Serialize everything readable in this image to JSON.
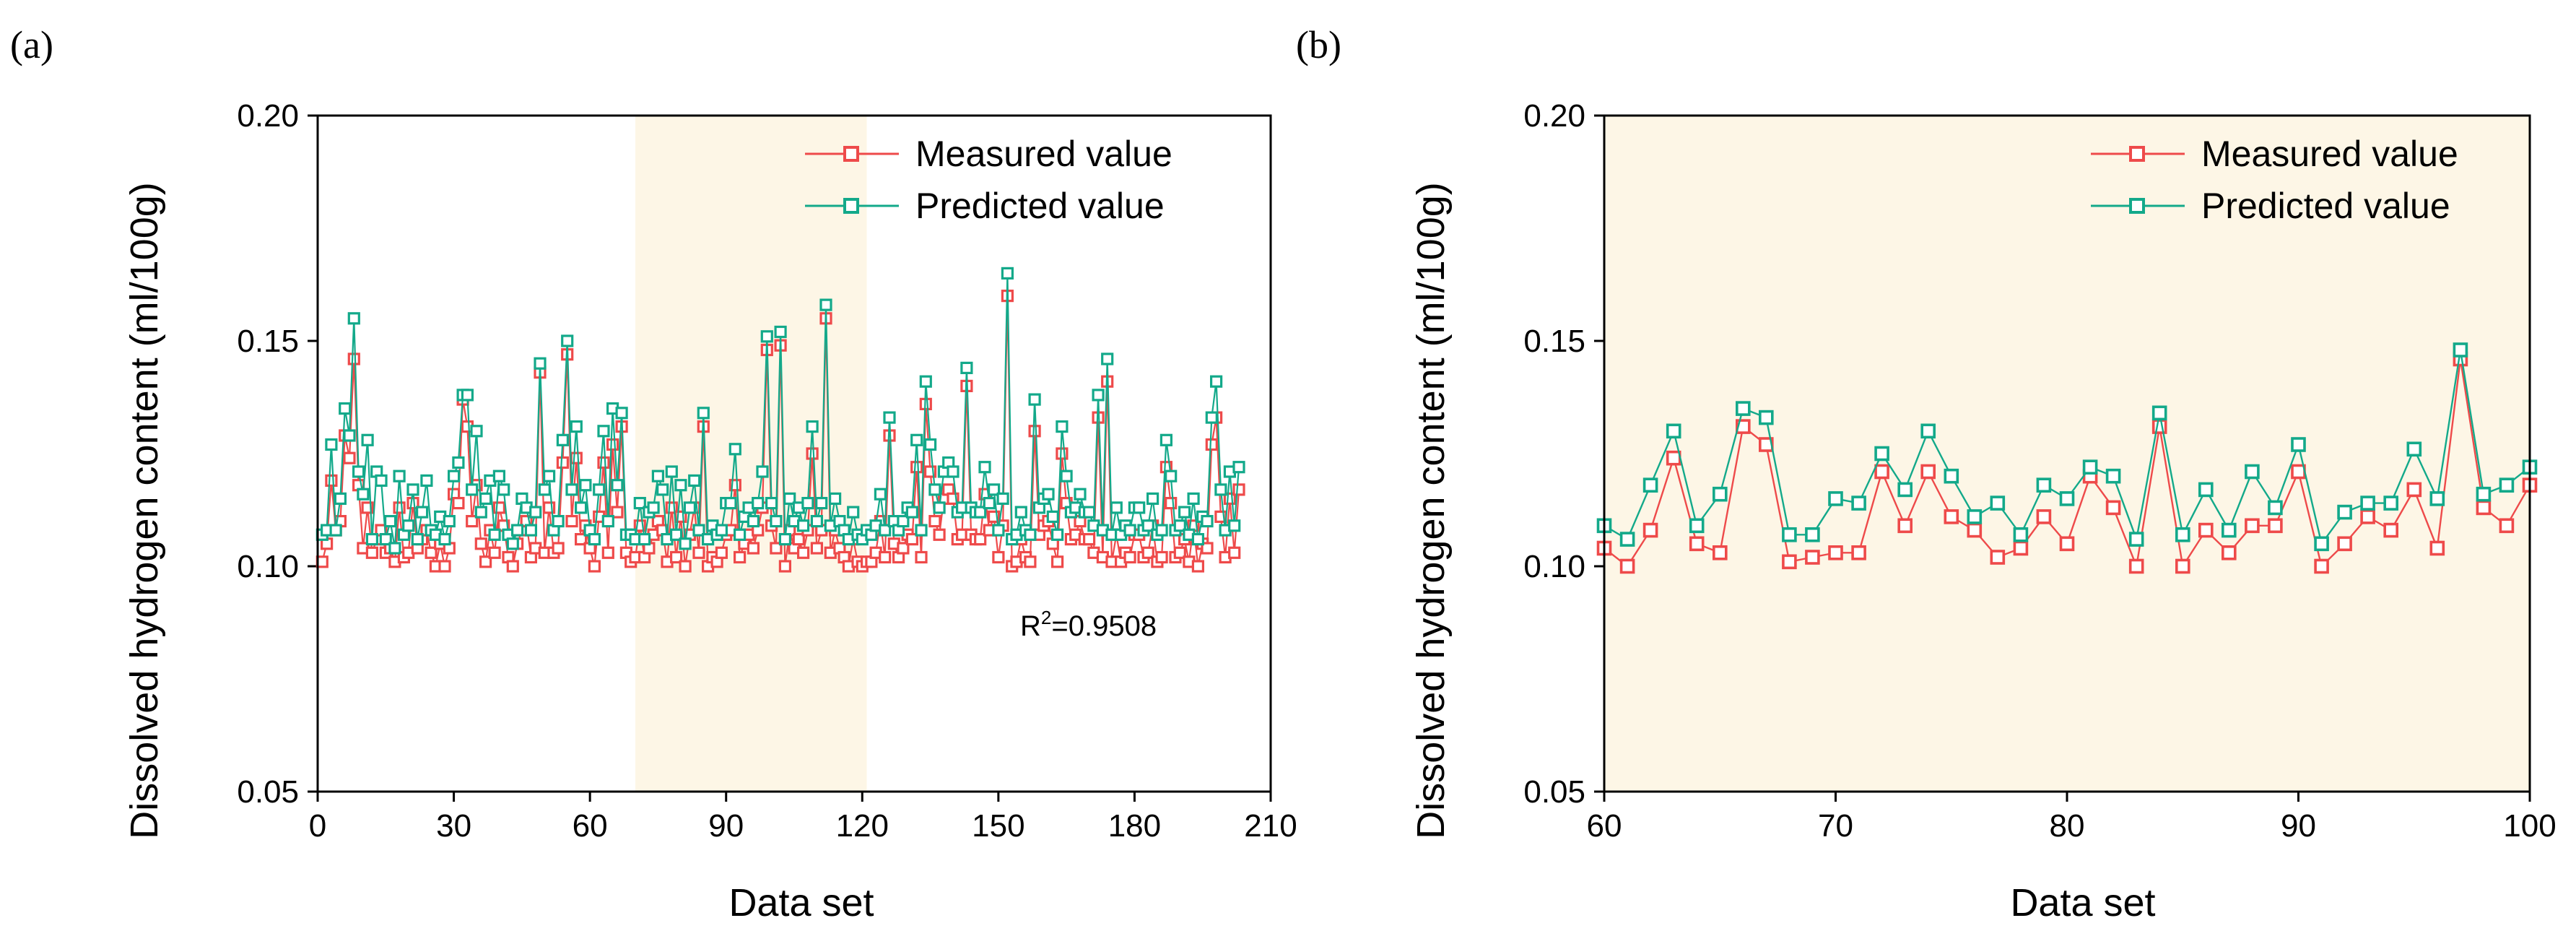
{
  "colors": {
    "measured": "#EE4A4A",
    "predicted": "#13A98A",
    "shade": "#FDF6E6"
  },
  "chart_data": [
    {
      "panel": "(a)",
      "type": "line",
      "xlabel": "Data set",
      "ylabel": "Dissolved hydrogen content (ml/100g)",
      "xlim": [
        0,
        210
      ],
      "ylim": [
        0.05,
        0.2
      ],
      "xticks": [
        0,
        30,
        60,
        90,
        120,
        150,
        180,
        210
      ],
      "yticks": [
        0.05,
        0.1,
        0.15,
        0.2
      ],
      "ytick_labels": [
        "0.05",
        "0.10",
        "0.15",
        "0.20"
      ],
      "shaded_x_range": [
        70,
        121
      ],
      "legend_position": "top-right",
      "annotation": {
        "text": "R",
        "sup": "2",
        "rest": "=0.9508"
      },
      "series": [
        {
          "name": "Measured value",
          "color_key": "measured",
          "x_start": 1,
          "values": [
            0.101,
            0.105,
            0.119,
            0.108,
            0.11,
            0.129,
            0.124,
            0.146,
            0.118,
            0.104,
            0.113,
            0.103,
            0.106,
            0.108,
            0.103,
            0.104,
            0.101,
            0.113,
            0.102,
            0.103,
            0.114,
            0.104,
            0.106,
            0.108,
            0.103,
            0.1,
            0.105,
            0.1,
            0.104,
            0.116,
            0.114,
            0.137,
            0.131,
            0.11,
            0.118,
            0.105,
            0.101,
            0.108,
            0.103,
            0.113,
            0.109,
            0.102,
            0.1,
            0.105,
            0.108,
            0.11,
            0.102,
            0.104,
            0.143,
            0.103,
            0.113,
            0.103,
            0.104,
            0.123,
            0.147,
            0.11,
            0.124,
            0.106,
            0.109,
            0.104,
            0.1,
            0.111,
            0.123,
            0.103,
            0.127,
            0.112,
            0.131,
            0.103,
            0.101,
            0.102,
            0.109,
            0.102,
            0.104,
            0.107,
            0.11,
            0.108,
            0.101,
            0.113,
            0.102,
            0.111,
            0.1,
            0.107,
            0.113,
            0.103,
            0.131,
            0.1,
            0.102,
            0.101,
            0.103,
            0.107,
            0.108,
            0.118,
            0.102,
            0.105,
            0.107,
            0.104,
            0.108,
            0.113,
            0.148,
            0.109,
            0.104,
            0.149,
            0.1,
            0.108,
            0.104,
            0.106,
            0.103,
            0.108,
            0.125,
            0.104,
            0.108,
            0.155,
            0.103,
            0.108,
            0.104,
            0.102,
            0.1,
            0.106,
            0.101,
            0.1,
            0.101,
            0.101,
            0.103,
            0.11,
            0.102,
            0.129,
            0.105,
            0.102,
            0.104,
            0.107,
            0.106,
            0.122,
            0.102,
            0.136,
            0.121,
            0.11,
            0.107,
            0.115,
            0.117,
            0.115,
            0.106,
            0.107,
            0.14,
            0.107,
            0.106,
            0.106,
            0.116,
            0.108,
            0.111,
            0.102,
            0.109,
            0.16,
            0.1,
            0.101,
            0.106,
            0.102,
            0.101,
            0.13,
            0.107,
            0.109,
            0.11,
            0.105,
            0.101,
            0.125,
            0.114,
            0.106,
            0.107,
            0.11,
            0.106,
            0.106,
            0.103,
            0.133,
            0.102,
            0.141,
            0.101,
            0.107,
            0.101,
            0.103,
            0.102,
            0.107,
            0.107,
            0.102,
            0.103,
            0.109,
            0.101,
            0.102,
            0.122,
            0.114,
            0.102,
            0.103,
            0.106,
            0.101,
            0.109,
            0.1,
            0.105,
            0.104,
            0.127,
            0.133,
            0.111,
            0.102,
            0.115,
            0.103,
            0.117
          ]
        },
        {
          "name": "Predicted value",
          "color_key": "predicted",
          "x_start": 1,
          "values": [
            0.107,
            0.108,
            0.127,
            0.108,
            0.115,
            0.135,
            0.129,
            0.155,
            0.121,
            0.116,
            0.128,
            0.106,
            0.121,
            0.119,
            0.106,
            0.11,
            0.104,
            0.12,
            0.107,
            0.109,
            0.117,
            0.106,
            0.112,
            0.119,
            0.108,
            0.107,
            0.111,
            0.106,
            0.11,
            0.12,
            0.123,
            0.138,
            0.138,
            0.117,
            0.13,
            0.112,
            0.115,
            0.119,
            0.107,
            0.12,
            0.117,
            0.107,
            0.105,
            0.108,
            0.115,
            0.113,
            0.108,
            0.112,
            0.145,
            0.117,
            0.12,
            0.108,
            0.11,
            0.128,
            0.15,
            0.117,
            0.131,
            0.113,
            0.118,
            0.108,
            0.106,
            0.117,
            0.13,
            0.11,
            0.135,
            0.118,
            0.134,
            0.107,
            0.107,
            0.106,
            0.114,
            0.106,
            0.112,
            0.113,
            0.12,
            0.117,
            0.106,
            0.121,
            0.107,
            0.118,
            0.105,
            0.113,
            0.119,
            0.108,
            0.134,
            0.106,
            0.109,
            0.107,
            0.108,
            0.114,
            0.114,
            0.126,
            0.107,
            0.111,
            0.113,
            0.11,
            0.114,
            0.121,
            0.151,
            0.114,
            0.11,
            0.152,
            0.106,
            0.115,
            0.11,
            0.113,
            0.109,
            0.114,
            0.131,
            0.11,
            0.114,
            0.158,
            0.109,
            0.115,
            0.11,
            0.108,
            0.106,
            0.112,
            0.107,
            0.106,
            0.108,
            0.107,
            0.109,
            0.116,
            0.108,
            0.133,
            0.11,
            0.108,
            0.11,
            0.113,
            0.112,
            0.128,
            0.108,
            0.141,
            0.127,
            0.117,
            0.113,
            0.121,
            0.123,
            0.121,
            0.112,
            0.113,
            0.144,
            0.113,
            0.112,
            0.112,
            0.122,
            0.114,
            0.117,
            0.108,
            0.115,
            0.165,
            0.106,
            0.107,
            0.112,
            0.108,
            0.107,
            0.137,
            0.113,
            0.115,
            0.116,
            0.111,
            0.107,
            0.131,
            0.12,
            0.112,
            0.113,
            0.116,
            0.112,
            0.112,
            0.109,
            0.138,
            0.108,
            0.146,
            0.107,
            0.113,
            0.107,
            0.109,
            0.108,
            0.113,
            0.113,
            0.108,
            0.109,
            0.115,
            0.107,
            0.108,
            0.128,
            0.12,
            0.108,
            0.109,
            0.112,
            0.107,
            0.115,
            0.106,
            0.111,
            0.11,
            0.133,
            0.141,
            0.117,
            0.108,
            0.121,
            0.109,
            0.122
          ]
        }
      ]
    },
    {
      "panel": "(b)",
      "type": "line",
      "xlabel": "Data set",
      "ylabel": "Dissolved hydrogen content (ml/100g)",
      "xlim": [
        60,
        100
      ],
      "ylim": [
        0.05,
        0.2
      ],
      "xticks": [
        60,
        70,
        80,
        90,
        100
      ],
      "yticks": [
        0.05,
        0.1,
        0.15,
        0.2
      ],
      "ytick_labels": [
        "0.05",
        "0.10",
        "0.15",
        "0.20"
      ],
      "shaded_x_range": [
        60,
        100
      ],
      "legend_position": "top-right",
      "series": [
        {
          "name": "Measured value",
          "color_key": "measured",
          "x_start": 60,
          "values": [
            0.104,
            0.1,
            0.108,
            0.124,
            0.105,
            0.103,
            0.131,
            0.127,
            0.101,
            0.102,
            0.103,
            0.103,
            0.121,
            0.109,
            0.121,
            0.111,
            0.108,
            0.102,
            0.104,
            0.111,
            0.105,
            0.12,
            0.113,
            0.1,
            0.131,
            0.1,
            0.108,
            0.103,
            0.109,
            0.109,
            0.121,
            0.1,
            0.105,
            0.111,
            0.108,
            0.117,
            0.104,
            0.146,
            0.113,
            0.109,
            0.118
          ]
        },
        {
          "name": "Predicted value",
          "color_key": "predicted",
          "x_start": 60,
          "values": [
            0.109,
            0.106,
            0.118,
            0.13,
            0.109,
            0.116,
            0.135,
            0.133,
            0.107,
            0.107,
            0.115,
            0.114,
            0.125,
            0.117,
            0.13,
            0.12,
            0.111,
            0.114,
            0.107,
            0.118,
            0.115,
            0.122,
            0.12,
            0.106,
            0.134,
            0.107,
            0.117,
            0.108,
            0.121,
            0.113,
            0.127,
            0.105,
            0.112,
            0.114,
            0.114,
            0.126,
            0.115,
            0.148,
            0.116,
            0.118,
            0.122
          ]
        }
      ]
    }
  ]
}
